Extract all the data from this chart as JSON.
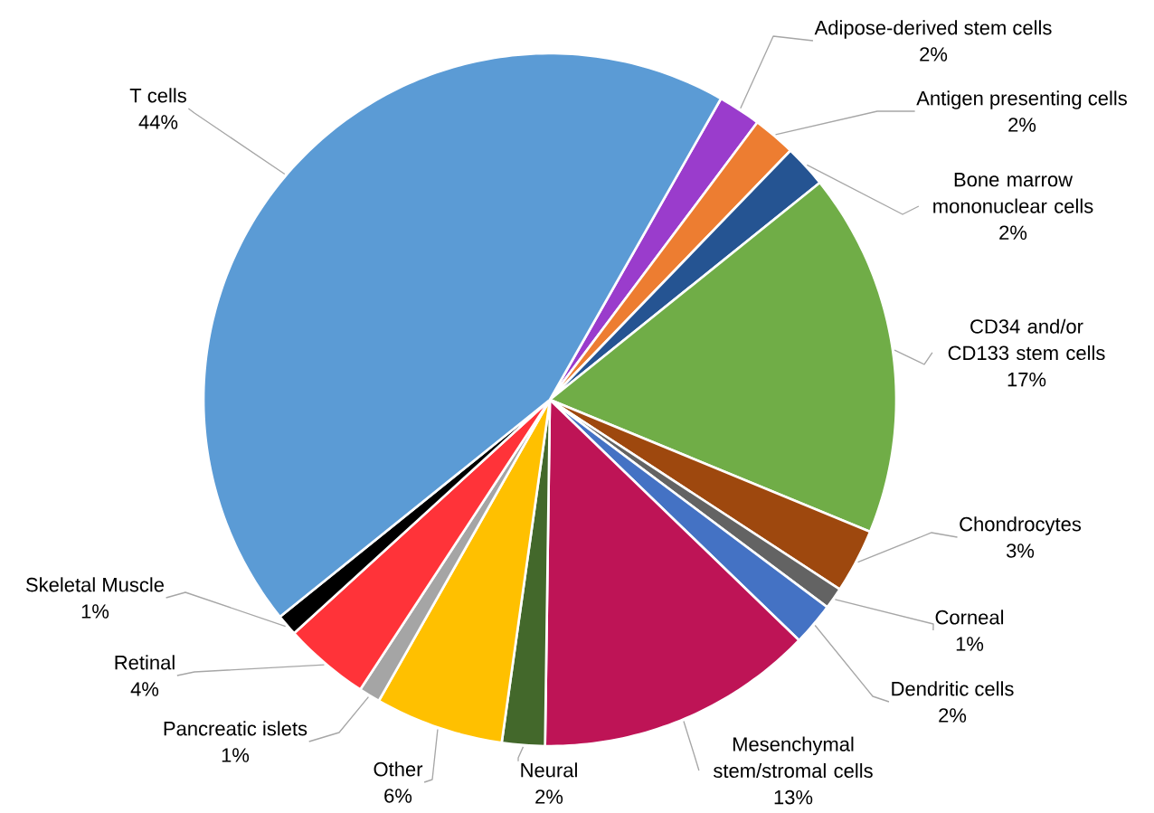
{
  "chart_data": {
    "type": "pie",
    "categories": [
      "Adipose-derived stem cells",
      "Antigen presenting cells",
      "Bone marrow mononuclear cells",
      "CD34 and/or CD133 stem cells",
      "Chondrocytes",
      "Corneal",
      "Dendritic cells",
      "Mesenchymal stem/stromal cells",
      "Neural",
      "Other",
      "Pancreatic islets",
      "Retinal",
      "Skeletal Muscle",
      "T cells"
    ],
    "values": [
      2,
      2,
      2,
      17,
      3,
      1,
      2,
      13,
      2,
      6,
      1,
      4,
      1,
      44
    ],
    "value_labels": [
      "2%",
      "2%",
      "2%",
      "17%",
      "3%",
      "1%",
      "2%",
      "13%",
      "2%",
      "6%",
      "1%",
      "4%",
      "1%",
      "44%"
    ],
    "colors": [
      "#9a3ccc",
      "#ed7d31",
      "#255492",
      "#70ad47",
      "#9e480e",
      "#636363",
      "#4472c4",
      "#be1456",
      "#43682b",
      "#ffc000",
      "#a5a5a5",
      "#ff3339",
      "#000000",
      "#5b9bd5"
    ]
  }
}
